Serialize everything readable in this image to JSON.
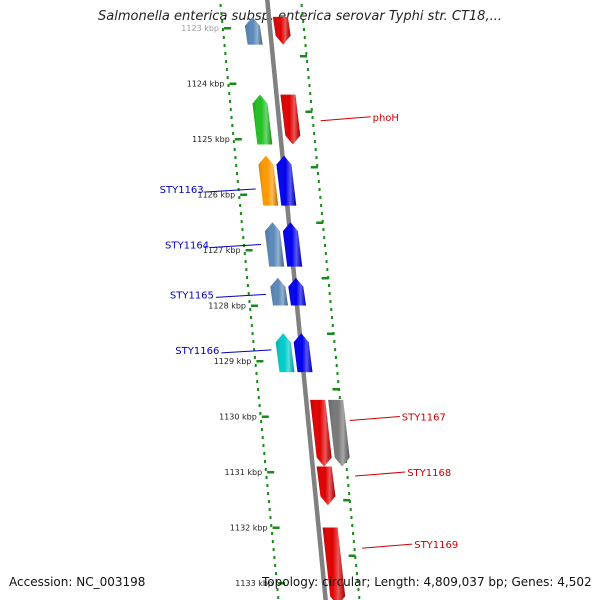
{
  "title": "Salmonella enterica subsp. enterica serovar Typhi str. CT18,...",
  "footer": {
    "accession": "Accession: NC_003198",
    "topology": "Topology: circular; Length: 4,809,037 bp; Genes: 4,502"
  },
  "colors": {
    "backbone": "#808080",
    "dotted_track": "#1a8a1a",
    "label_left": "#0000bb",
    "label_right": "#cc0000",
    "red": "#e00000",
    "green": "#22c022",
    "blue": "#0000ee",
    "orange": "#ff9900",
    "cyan": "#00cccc",
    "steel": "#5a88b8",
    "gray": "#777777"
  },
  "ticks": [
    {
      "label": "1123 kbp",
      "kbp": 1123
    },
    {
      "label": "1124 kbp",
      "kbp": 1124
    },
    {
      "label": "1125 kbp",
      "kbp": 1125
    },
    {
      "label": "1126 kbp",
      "kbp": 1126
    },
    {
      "label": "1127 kbp",
      "kbp": 1127
    },
    {
      "label": "1128 kbp",
      "kbp": 1128
    },
    {
      "label": "1129 kbp",
      "kbp": 1129
    },
    {
      "label": "1130 kbp",
      "kbp": 1130
    },
    {
      "label": "1131 kbp",
      "kbp": 1131
    },
    {
      "label": "1132 kbp",
      "kbp": 1132
    },
    {
      "label": "1133 kbp",
      "kbp": 1133
    }
  ],
  "features": [
    {
      "strand": "reverse",
      "color": "red",
      "start_kbp": 1122.8,
      "end_kbp": 1123.3
    },
    {
      "strand": "forward",
      "color": "steel",
      "start_kbp": 1122.8,
      "end_kbp": 1123.3
    },
    {
      "strand": "reverse",
      "color": "red",
      "start_kbp": 1124.2,
      "end_kbp": 1125.1
    },
    {
      "strand": "forward",
      "color": "green",
      "start_kbp": 1124.2,
      "end_kbp": 1125.1
    },
    {
      "strand": "forward",
      "color": "orange",
      "start_kbp": 1125.3,
      "end_kbp": 1126.2
    },
    {
      "strand": "forward",
      "color": "blue",
      "start_kbp": 1125.3,
      "end_kbp": 1126.2
    },
    {
      "strand": "forward",
      "color": "steel",
      "start_kbp": 1126.5,
      "end_kbp": 1127.3
    },
    {
      "strand": "forward",
      "color": "blue",
      "start_kbp": 1126.5,
      "end_kbp": 1127.3
    },
    {
      "strand": "forward",
      "color": "steel",
      "start_kbp": 1127.5,
      "end_kbp": 1128.0
    },
    {
      "strand": "forward",
      "color": "blue",
      "start_kbp": 1127.5,
      "end_kbp": 1128.0
    },
    {
      "strand": "forward",
      "color": "cyan",
      "start_kbp": 1128.5,
      "end_kbp": 1129.2
    },
    {
      "strand": "forward",
      "color": "blue",
      "start_kbp": 1128.5,
      "end_kbp": 1129.2
    },
    {
      "strand": "reverse",
      "color": "red",
      "start_kbp": 1129.7,
      "end_kbp": 1130.9
    },
    {
      "strand": "reverse",
      "color": "gray",
      "start_kbp": 1129.7,
      "end_kbp": 1130.9
    },
    {
      "strand": "reverse",
      "color": "red",
      "start_kbp": 1130.9,
      "end_kbp": 1131.6
    },
    {
      "strand": "reverse",
      "color": "red",
      "start_kbp": 1132.0,
      "end_kbp": 1133.4
    }
  ],
  "gene_labels": [
    {
      "text": "phoH",
      "side": "right",
      "kbp": 1124.6
    },
    {
      "text": "STY1163",
      "side": "left",
      "kbp": 1125.9
    },
    {
      "text": "STY1164",
      "side": "left",
      "kbp": 1126.9
    },
    {
      "text": "STY1165",
      "side": "left",
      "kbp": 1127.8
    },
    {
      "text": "STY1166",
      "side": "left",
      "kbp": 1128.8
    },
    {
      "text": "STY1167",
      "side": "right",
      "kbp": 1130.0
    },
    {
      "text": "STY1168",
      "side": "right",
      "kbp": 1131.0
    },
    {
      "text": "STY1169",
      "side": "right",
      "kbp": 1132.3
    }
  ]
}
